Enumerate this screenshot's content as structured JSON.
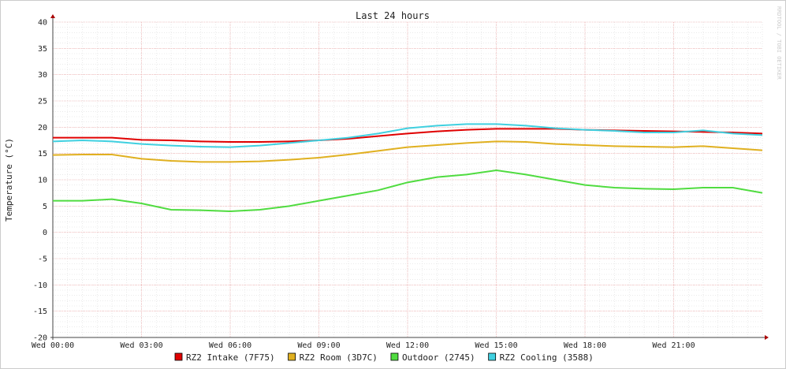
{
  "chart_data": {
    "type": "line",
    "title": "Last 24 hours",
    "watermark": "RRDTOOL / TOBI OETIKER",
    "y_label": "Temperature (°C)",
    "x": [
      0,
      1,
      2,
      3,
      4,
      5,
      6,
      7,
      8,
      9,
      10,
      11,
      12,
      13,
      14,
      15,
      16,
      17,
      18,
      19,
      20,
      21,
      22,
      23,
      24
    ],
    "xlim": [
      0,
      24
    ],
    "xticks": [
      {
        "value": 0,
        "label": "Wed 00:00"
      },
      {
        "value": 3,
        "label": "Wed 03:00"
      },
      {
        "value": 6,
        "label": "Wed 06:00"
      },
      {
        "value": 9,
        "label": "Wed 09:00"
      },
      {
        "value": 12,
        "label": "Wed 12:00"
      },
      {
        "value": 15,
        "label": "Wed 15:00"
      },
      {
        "value": 18,
        "label": "Wed 18:00"
      },
      {
        "value": 21,
        "label": "Wed 21:00"
      }
    ],
    "ylim": [
      -20,
      40
    ],
    "yticks": [
      -20,
      -15,
      -10,
      -5,
      0,
      5,
      10,
      15,
      20,
      25,
      30,
      35,
      40
    ],
    "grid": true,
    "series": [
      {
        "name": "RZ2 Intake (7F75)",
        "color": "#e00000",
        "values": [
          18,
          18,
          18,
          17.6,
          17.5,
          17.3,
          17.2,
          17.2,
          17.3,
          17.5,
          17.8,
          18.3,
          18.8,
          19.2,
          19.5,
          19.7,
          19.7,
          19.7,
          19.5,
          19.4,
          19.3,
          19.2,
          19.1,
          19.0,
          18.8
        ]
      },
      {
        "name": "RZ2 Room (3D7C)",
        "color": "#e0b020",
        "values": [
          14.7,
          14.8,
          14.8,
          14.0,
          13.6,
          13.4,
          13.4,
          13.5,
          13.8,
          14.2,
          14.8,
          15.5,
          16.2,
          16.6,
          17.0,
          17.3,
          17.2,
          16.8,
          16.6,
          16.4,
          16.3,
          16.2,
          16.4,
          16.0,
          15.6
        ]
      },
      {
        "name": "Outdoor (2745)",
        "color": "#50dc40",
        "values": [
          6.0,
          6.0,
          6.3,
          5.5,
          4.3,
          4.2,
          4.0,
          4.3,
          5.0,
          6.0,
          7.0,
          8.0,
          9.5,
          10.5,
          11.0,
          11.8,
          11.0,
          10.0,
          9.0,
          8.5,
          8.3,
          8.2,
          8.5,
          8.5,
          7.5
        ]
      },
      {
        "name": "RZ2 Cooling (3588)",
        "color": "#40d0e0",
        "values": [
          17.3,
          17.5,
          17.3,
          16.8,
          16.5,
          16.3,
          16.2,
          16.5,
          17.0,
          17.5,
          18.0,
          18.8,
          19.8,
          20.3,
          20.6,
          20.6,
          20.3,
          19.8,
          19.5,
          19.3,
          19.0,
          19.0,
          19.4,
          18.8,
          18.5
        ]
      }
    ]
  }
}
